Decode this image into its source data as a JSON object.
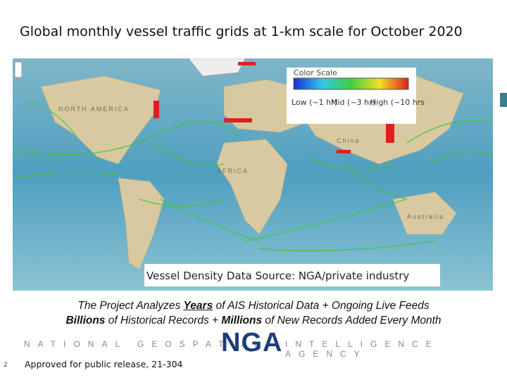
{
  "title": "Global monthly vessel traffic grids at 1-km scale for October 2020",
  "map": {
    "labels": [
      "NORTH AMERICA",
      "AFRICA",
      "China",
      "Australia"
    ],
    "color_scale": {
      "title": "Color Scale",
      "low": "Low (~1 hr)",
      "mid": "Mid (~3 hr)",
      "high": "High (~10 hrs"
    },
    "source": "Vessel Density Data Source: NGA/private industry"
  },
  "caption": {
    "line1": [
      "The Project Analyzes ",
      "Years",
      " of AIS Historical Data + Ongoing Live Feeds"
    ],
    "line2": [
      "Billions",
      " of Historical Records + ",
      "Millions",
      " of New Records Added Every Month"
    ]
  },
  "footer": {
    "left": "NATIONAL GEOSPATIAL",
    "logo": "NGA",
    "right": "INTELLIGENCE AGENCY",
    "page": "2",
    "approval": "Approved for public release, 21-304"
  }
}
